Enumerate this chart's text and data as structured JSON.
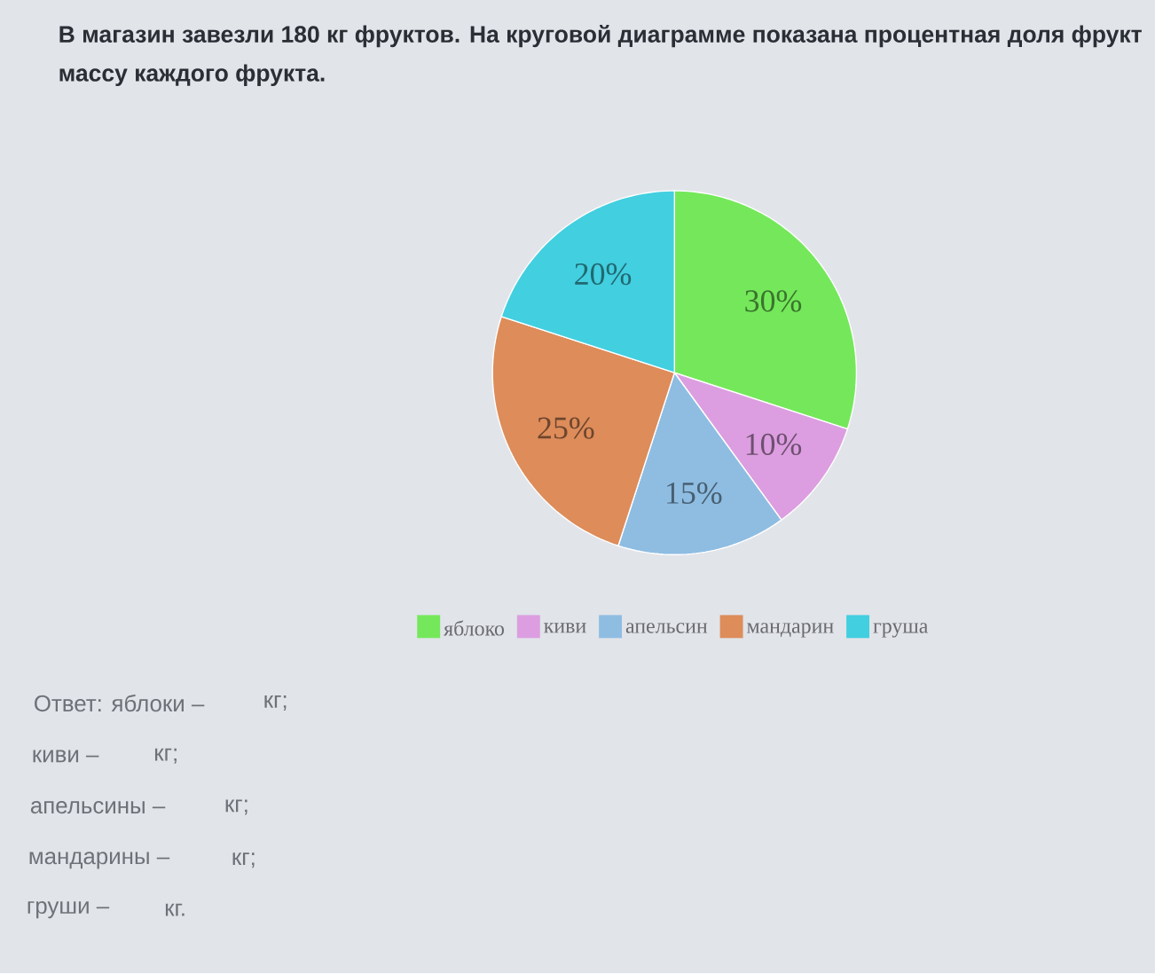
{
  "chart_data": {
    "type": "pie",
    "title": "В магазин завезли 180 кг фруктов. На круговой диаграмме показана процентная доля фрукт",
    "subtitle": "массу каждого фрукта.",
    "categories": [
      "яблоко",
      "киви",
      "апельсин",
      "мандарин",
      "груша"
    ],
    "values": [
      30,
      10,
      15,
      25,
      20
    ],
    "colors": [
      "#74e85a",
      "#dc9ee0",
      "#8fbde2",
      "#dd8c5a",
      "#42cfe0"
    ],
    "value_labels": [
      "30%",
      "10%",
      "15%",
      "25%",
      "20%"
    ],
    "legend": "bottom",
    "annotations": [
      "Ответ: яблоки –",
      "кг;",
      "киви –",
      "кг;",
      "апельсины –",
      "кг;",
      "мандарины –",
      "кг;",
      "груши –",
      "кг."
    ]
  }
}
